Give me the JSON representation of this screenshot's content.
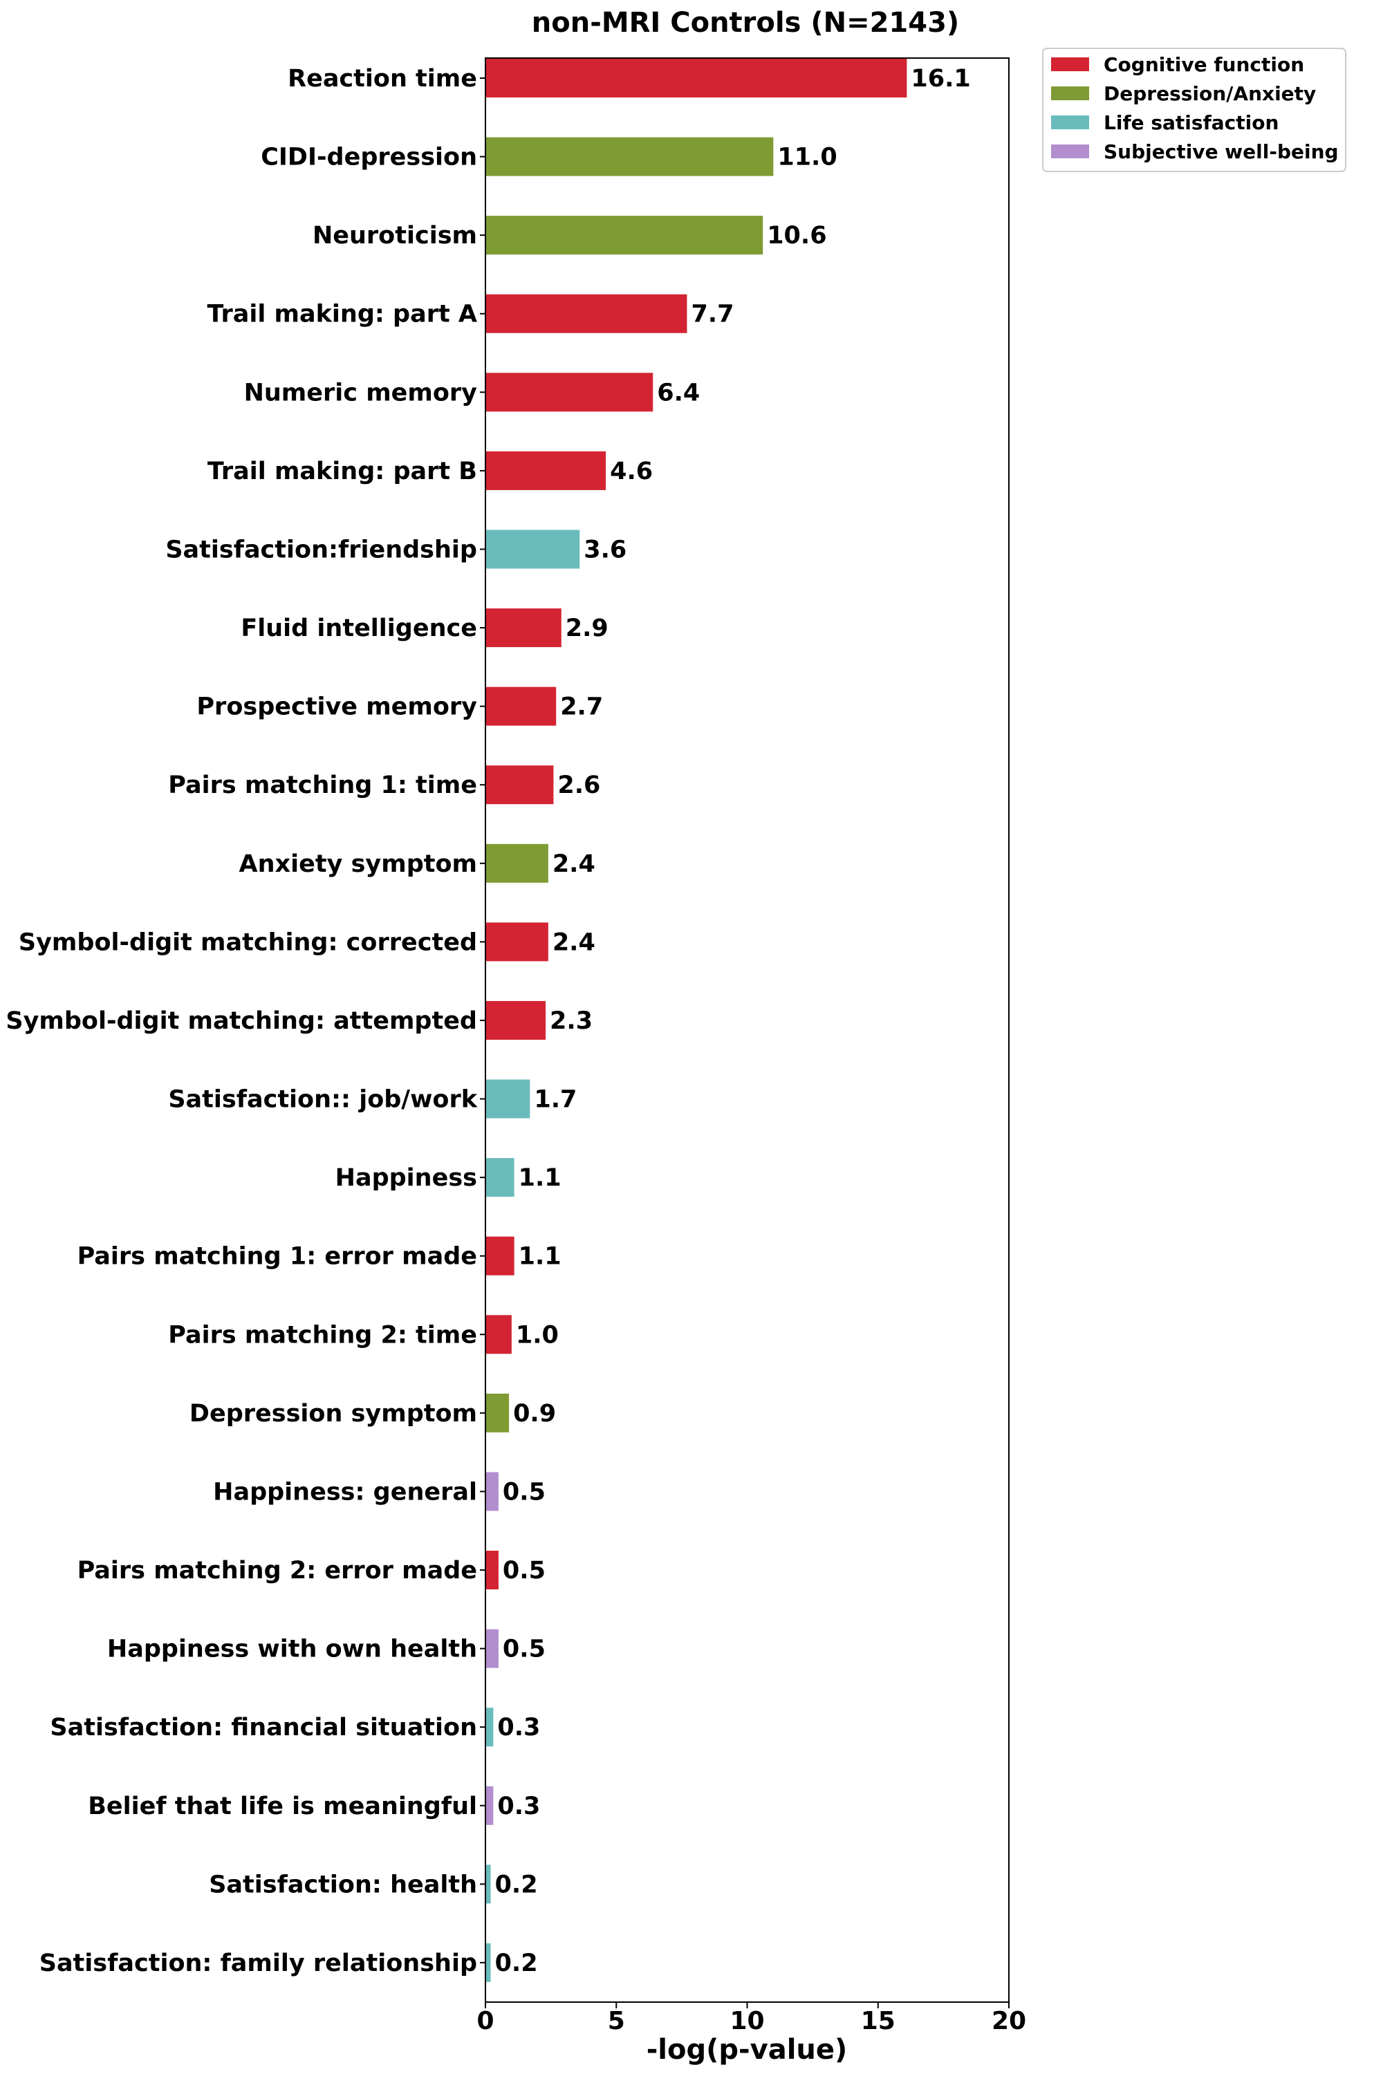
{
  "chart_data": {
    "type": "bar",
    "orientation": "horizontal",
    "title": "non-MRI Controls (N=2143)",
    "xlabel": "-log(p-value)",
    "ylabel": "",
    "xlim": [
      0,
      20
    ],
    "xticks": [
      0,
      5,
      10,
      15,
      20
    ],
    "grid": false,
    "legend_position": "top-right outside plot",
    "legend": [
      {
        "name": "Cognitive function",
        "color": "#d42433"
      },
      {
        "name": "Depression/Anxiety",
        "color": "#7f9b33"
      },
      {
        "name": "Life satisfaction",
        "color": "#6abcbc"
      },
      {
        "name": "Subjective well-being",
        "color": "#b28ece"
      }
    ],
    "bars": [
      {
        "label": "Reaction time",
        "value": 16.1,
        "value_label": "16.1",
        "category": "Cognitive function"
      },
      {
        "label": "CIDI-depression",
        "value": 11.0,
        "value_label": "11.0",
        "category": "Depression/Anxiety"
      },
      {
        "label": "Neuroticism",
        "value": 10.6,
        "value_label": "10.6",
        "category": "Depression/Anxiety"
      },
      {
        "label": "Trail making: part A",
        "value": 7.7,
        "value_label": "7.7",
        "category": "Cognitive function"
      },
      {
        "label": "Numeric memory",
        "value": 6.4,
        "value_label": "6.4",
        "category": "Cognitive function"
      },
      {
        "label": "Trail making: part B",
        "value": 4.6,
        "value_label": "4.6",
        "category": "Cognitive function"
      },
      {
        "label": "Satisfaction:friendship",
        "value": 3.6,
        "value_label": "3.6",
        "category": "Life satisfaction"
      },
      {
        "label": "Fluid intelligence",
        "value": 2.9,
        "value_label": "2.9",
        "category": "Cognitive function"
      },
      {
        "label": "Prospective memory",
        "value": 2.7,
        "value_label": "2.7",
        "category": "Cognitive function"
      },
      {
        "label": "Pairs matching 1: time",
        "value": 2.6,
        "value_label": "2.6",
        "category": "Cognitive function"
      },
      {
        "label": "Anxiety symptom",
        "value": 2.4,
        "value_label": "2.4",
        "category": "Depression/Anxiety"
      },
      {
        "label": "Symbol-digit matching: corrected",
        "value": 2.4,
        "value_label": "2.4",
        "category": "Cognitive function"
      },
      {
        "label": "Symbol-digit matching: attempted",
        "value": 2.3,
        "value_label": "2.3",
        "category": "Cognitive function"
      },
      {
        "label": "Satisfaction:: job/work",
        "value": 1.7,
        "value_label": "1.7",
        "category": "Life satisfaction"
      },
      {
        "label": "Happiness",
        "value": 1.1,
        "value_label": "1.1",
        "category": "Life satisfaction"
      },
      {
        "label": "Pairs matching 1: error made",
        "value": 1.1,
        "value_label": "1.1",
        "category": "Cognitive function"
      },
      {
        "label": "Pairs matching 2: time",
        "value": 1.0,
        "value_label": "1.0",
        "category": "Cognitive function"
      },
      {
        "label": "Depression symptom",
        "value": 0.9,
        "value_label": "0.9",
        "category": "Depression/Anxiety"
      },
      {
        "label": "Happiness: general",
        "value": 0.5,
        "value_label": "0.5",
        "category": "Subjective well-being"
      },
      {
        "label": "Pairs matching 2: error made",
        "value": 0.5,
        "value_label": "0.5",
        "category": "Cognitive function"
      },
      {
        "label": "Happiness with own health",
        "value": 0.5,
        "value_label": "0.5",
        "category": "Subjective well-being"
      },
      {
        "label": "Satisfaction: financial situation",
        "value": 0.3,
        "value_label": "0.3",
        "category": "Life satisfaction"
      },
      {
        "label": "Belief that life is meaningful",
        "value": 0.3,
        "value_label": "0.3",
        "category": "Subjective well-being"
      },
      {
        "label": "Satisfaction: health",
        "value": 0.2,
        "value_label": "0.2",
        "category": "Life satisfaction"
      },
      {
        "label": "Satisfaction: family relationship",
        "value": 0.2,
        "value_label": "0.2",
        "category": "Life satisfaction"
      }
    ]
  }
}
